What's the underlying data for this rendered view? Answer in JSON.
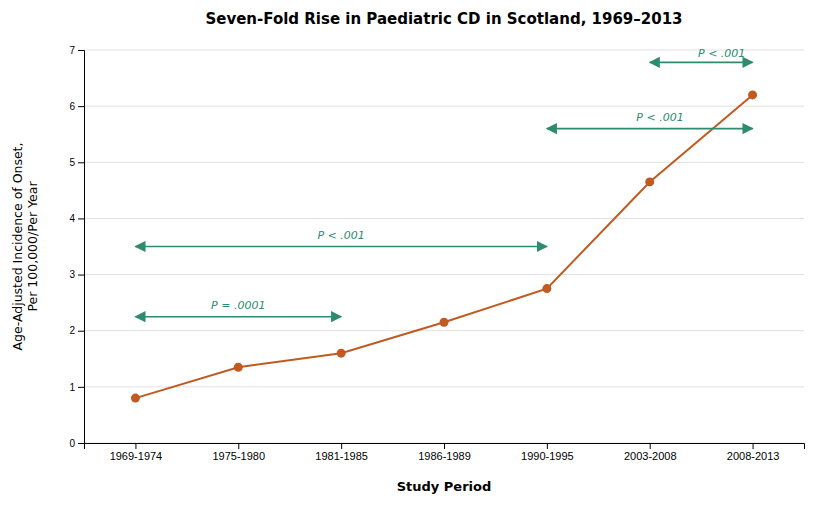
{
  "chart_data": {
    "type": "line",
    "title": "Seven-Fold Rise in Paediatric CD in Scotland, 1969–2013",
    "xlabel": "Study Period",
    "ylabel": "Age-Adjusted Incidence of Onset,\nPer 100,000/Per Year",
    "categories": [
      "1969-1974",
      "1975-1980",
      "1981-1985",
      "1986-1989",
      "1990-1995",
      "2003-2008",
      "2008-2013"
    ],
    "values": [
      0.8,
      1.35,
      1.6,
      2.15,
      2.75,
      4.65,
      6.2
    ],
    "color": "#C05A20",
    "marker": "circle",
    "ylim": [
      0,
      7
    ],
    "yticks": [
      0,
      1,
      2,
      3,
      4,
      5,
      6,
      7
    ],
    "grid": true,
    "annotations": [
      {
        "text": "P = .0001",
        "x_start": 0,
        "x_end": 2,
        "y": 2.25,
        "text_x": 1.0,
        "text_y": 2.38,
        "color": "#2E8B6E"
      },
      {
        "text": "P < .001",
        "x_start": 0,
        "x_end": 4,
        "y": 3.5,
        "text_x": 2.0,
        "text_y": 3.63,
        "color": "#2E8B6E"
      },
      {
        "text": "P < .001",
        "x_start": 4,
        "x_end": 6,
        "y": 5.6,
        "text_x": 5.1,
        "text_y": 5.73,
        "color": "#2E8B6E"
      },
      {
        "text": "P < .001",
        "x_start": 5,
        "x_end": 6,
        "y": 6.78,
        "text_x": 5.7,
        "text_y": 6.88,
        "color": "#2E8B6E"
      }
    ]
  }
}
